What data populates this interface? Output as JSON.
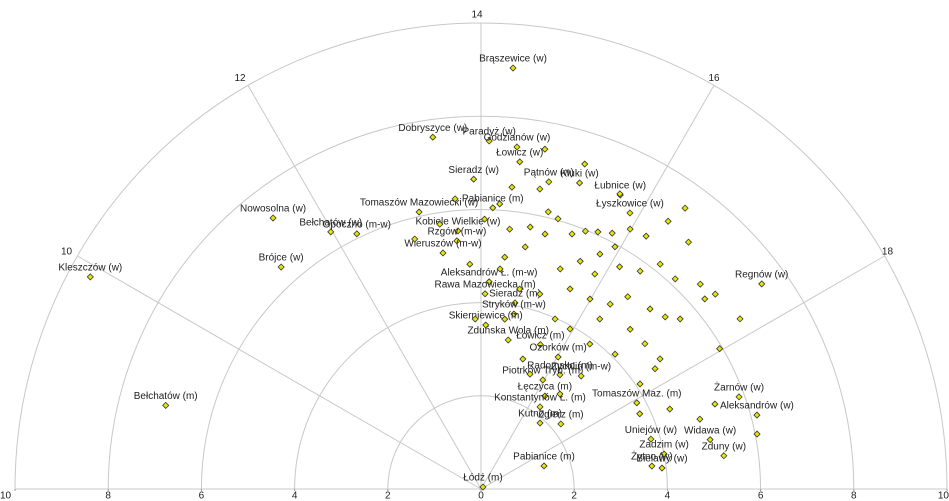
{
  "chart_data": {
    "type": "polar_scatter",
    "thetalim": [
      8,
      20
    ],
    "rlim": [
      0,
      10
    ],
    "theta_ticks": [
      10,
      12,
      14,
      16,
      18
    ],
    "r_ticks": [
      0,
      2,
      4,
      6,
      8,
      10
    ],
    "grid": true,
    "series": [
      {
        "color": "#e6e600",
        "labels": [
          "Brąszewice (w)",
          "Dobryszyce (w)",
          "Paradyż (w)",
          "Godzianów (w)",
          "Łowicz (w)",
          "Pątnów (w)",
          "Kluki (w)",
          "Łubnice (w)",
          "Sieradz (w)",
          "Łyszkowice (w)",
          "Tomaszów Mazowiecki (w)",
          "Pabianice (m)",
          "Nowosolna (w)",
          "Bełchatów (w)",
          "Opoczno (m-w)",
          "Kobiele Wielkie (w)",
          "Rzgów (m-w)",
          "Brójce (w)",
          "Wieruszów (m-w)",
          "Kleszczów (w)",
          "Regnów (w)",
          "Aleksandrów Ł. (m-w)",
          "Rawa Mazowiecka (m)",
          "Sieradz (m)",
          "Stryków (m-w)",
          "Skierniewice (m)",
          "Zduńska Wola (m)",
          "Łowicz (m)",
          "Ozorków (m)",
          "Radomsko (m)",
          "Piotrków Tryb. (m)",
          "Zychlin (m-w)",
          "Łęczyca (m)",
          "Tomaszów Maz. (m)",
          "Konstantynów Ł. (m)",
          "Żarnów (w)",
          "Aleksandrów (w)",
          "Kutno (m)",
          "Zgierz (m)",
          "Widawa (w)",
          "Uniejów (w)",
          "Zadzim (w)",
          "Zduny (w)",
          "Pabianice (m)",
          "Żytno (w)",
          "Bielawy (w)",
          "Łódź (m)",
          "Bełchatów (m)"
        ],
        "theta": [
          14.29,
          13.48,
          14.09,
          14.4,
          14.45,
          14.83,
          15.19,
          15.69,
          13.91,
          15.89,
          13.16,
          14.16,
          11.5,
          11.98,
          12.27,
          13.66,
          13.63,
          11.2,
          13.39,
          9.9,
          17.59,
          14.15,
          14.08,
          14.69,
          14.71,
          14.11,
          14.69,
          15.49,
          16.02,
          16.31,
          15.97,
          16.77,
          16.3,
          18.07,
          16.38,
          18.69,
          19.0,
          16.79,
          17.39,
          19.19,
          18.91,
          19.28,
          19.48,
          18.66,
          19.49,
          19.56,
          17.0,
          8.99
        ],
        "r": [
          9.06,
          7.62,
          7.47,
          7.38,
          7.07,
          6.75,
          6.9,
          6.98,
          6.65,
          6.73,
          6.09,
          6.04,
          7.33,
          6.39,
          6.09,
          5.56,
          5.35,
          6.41,
          5.13,
          9.54,
          7.46,
          4.45,
          4.19,
          4.06,
          3.82,
          3.52,
          3.25,
          3.35,
          3.28,
          2.98,
          2.69,
          3.24,
          2.42,
          3.82,
          2.17,
          5.88,
          6.13,
          1.9,
          2.21,
          5.03,
          3.8,
          4.0,
          5.26,
          1.44,
          3.7,
          3.91,
          0.06,
          7.0
        ]
      },
      {
        "color": "#e6e600",
        "theta": [
          14.39,
          14.74,
          14.91,
          15.06,
          14.71,
          14.94,
          15.31,
          15.47,
          15.63,
          15.81,
          15.99,
          16.21,
          16.4,
          16.33,
          16.67,
          15.79,
          15.93,
          15.57,
          15.32,
          15.86,
          16.13,
          16.41,
          16.57,
          16.85,
          17.13,
          17.35,
          15.12,
          15.6,
          15.99,
          16.33,
          16.49,
          16.88,
          17.13,
          17.3,
          17.31,
          17.78,
          17.97,
          16.33,
          16.87,
          17.23,
          17.6,
          16.99,
          16.46,
          15.94,
          15.57,
          14.73,
          14.33,
          13.81,
          14.42,
          14.25,
          14.05,
          13.66,
          13.41,
          13.01,
          15.19,
          15.54,
          16.65,
          17.77,
          17.69,
          18.47,
          18.31,
          19.25,
          18.82,
          18.67,
          15.68,
          15.18,
          14.71,
          14.39,
          14.69,
          13.87,
          14.53
        ],
        "r": [
          6.51,
          6.56,
          6.12,
          6.03,
          5.72,
          5.64,
          5.81,
          5.97,
          6.06,
          6.17,
          6.43,
          6.48,
          7.45,
          7.01,
          6.92,
          5.65,
          5.94,
          5.33,
          5.02,
          5.22,
          5.62,
          5.79,
          6.17,
          6.14,
          6.44,
          6.54,
          4.37,
          4.7,
          4.7,
          4.84,
          5.19,
          5.3,
          5.41,
          5.62,
          6.3,
          6.65,
          5.94,
          4.45,
          4.69,
          4.7,
          4.75,
          4.08,
          3.89,
          3.93,
          3.98,
          4.37,
          4.74,
          4.83,
          5.61,
          6.13,
          5.79,
          6.25,
          5.75,
          5.55,
          2.93,
          2.68,
          2.65,
          4.09,
          4.54,
          4.4,
          3.77,
          6.04,
          4.93,
          5.34,
          7.0,
          7.32,
          7.42,
          5.0,
          5.28,
          3.65,
          3.68
        ]
      }
    ]
  }
}
